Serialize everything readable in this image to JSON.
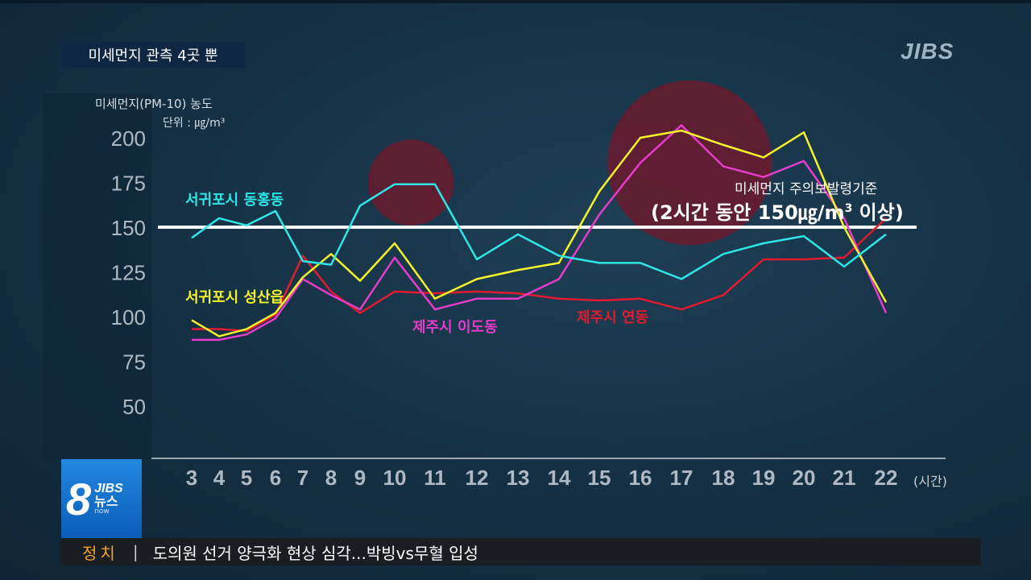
{
  "headline": "미세먼지 관측 4곳 뿐",
  "logo": "JIBS",
  "y_axis": {
    "title": "미세먼지(PM-10) 농도",
    "unit": "단위 : ㎍/m³"
  },
  "x_axis": {
    "unit": "(시간)"
  },
  "reference": {
    "label_line1": "미세먼지 주의보발령기준",
    "label_line2_prefix": "(2시간 동안 150",
    "label_line2_unit": "㎍/m",
    "label_line2_sup": "3",
    "label_line2_suffix": " 이상)"
  },
  "chart_data": {
    "type": "line",
    "x": [
      3,
      4,
      5,
      6,
      7,
      8,
      9,
      10,
      11,
      12,
      13,
      14,
      15,
      16,
      17,
      18,
      19,
      20,
      21,
      22
    ],
    "ylim": [
      40,
      210
    ],
    "yticks": [
      200,
      175,
      150,
      125,
      100,
      75,
      50
    ],
    "reference_line": 150,
    "highlights": [
      {
        "x": 10.4,
        "y": 175,
        "r": 24
      },
      {
        "x": 17.2,
        "y": 186,
        "r": 46
      }
    ],
    "series": [
      {
        "name": "서귀포시 동홍동",
        "color": "#2fe6e6",
        "values": [
          144,
          155,
          151,
          159,
          131,
          129,
          162,
          174,
          174,
          132,
          146,
          134,
          130,
          130,
          121,
          135,
          141,
          145,
          128,
          146
        ]
      },
      {
        "name": "서귀포시 성산읍",
        "color": "#f4f42a",
        "values": [
          98,
          89,
          93,
          102,
          122,
          135,
          120,
          141,
          110,
          121,
          126,
          130,
          170,
          200,
          204,
          196,
          189,
          203,
          150,
          108
        ]
      },
      {
        "name": "제주시 이도동",
        "color": "#e63ccc",
        "values": [
          87,
          87,
          90,
          99,
          121,
          112,
          104,
          133,
          104,
          110,
          110,
          121,
          157,
          186,
          207,
          184,
          178,
          187,
          155,
          102
        ]
      },
      {
        "name": "제주시 연동",
        "color": "#e21b2e",
        "values": [
          93,
          93,
          92,
          101,
          134,
          114,
          102,
          114,
          113,
          114,
          113,
          110,
          109,
          110,
          104,
          112,
          132,
          132,
          133,
          155
        ]
      }
    ]
  },
  "news_badge": {
    "number": "8",
    "brand": "JIBS",
    "title": "뉴스",
    "sub": "now"
  },
  "ticker": {
    "category": "정치",
    "separator": "|",
    "text": "도의원 선거 양극화 현상 심각...박빙vs무혈 입성"
  }
}
